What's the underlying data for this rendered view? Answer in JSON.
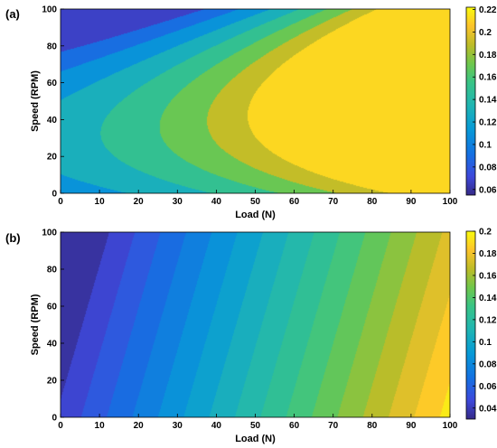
{
  "chart_data": [
    {
      "type": "heatmap",
      "panel_label": "(a)",
      "xlabel": "Load (N)",
      "ylabel": "Speed (RPM)",
      "xlim": [
        0,
        100
      ],
      "ylim": [
        0,
        100
      ],
      "x_ticks": [
        0,
        10,
        20,
        30,
        40,
        50,
        60,
        70,
        80,
        90,
        100
      ],
      "y_ticks": [
        0,
        20,
        40,
        60,
        80,
        100
      ],
      "colorbar": {
        "range": [
          0.055,
          0.222
        ],
        "ticks": [
          0.06,
          0.08,
          0.1,
          0.12,
          0.14,
          0.16,
          0.18,
          0.2,
          0.22
        ],
        "tick_labels": [
          "0.06",
          "0.08",
          "0.1",
          "0.12",
          "0.14",
          "0.16",
          "0.18",
          "0.2",
          "0.22"
        ]
      },
      "contour_levels": [
        0.08,
        0.1,
        0.12,
        0.14,
        0.16,
        0.18,
        0.2
      ],
      "surface": {
        "form": "quadratic_in_speed",
        "a": [
          0.108,
          0.06,
          0.058
        ],
        "b": [
          0.0014,
          0.0013,
          0.0015
        ],
        "c": [
          -2.3e-05,
          -7e-06,
          -8e-06
        ]
      },
      "colormap": "parula",
      "grid": false
    },
    {
      "type": "heatmap",
      "panel_label": "(b)",
      "xlabel": "Load (N)",
      "ylabel": "Speed (RPM)",
      "xlim": [
        0,
        100
      ],
      "ylim": [
        0,
        100
      ],
      "x_ticks": [
        0,
        10,
        20,
        30,
        40,
        50,
        60,
        70,
        80,
        90,
        100
      ],
      "y_ticks": [
        0,
        20,
        40,
        60,
        80,
        100
      ],
      "colorbar": {
        "range": [
          0.03,
          0.2
        ],
        "ticks": [
          0.04,
          0.06,
          0.08,
          0.1,
          0.12,
          0.14,
          0.16,
          0.18,
          0.2
        ],
        "tick_labels": [
          "0.04",
          "0.06",
          "0.08",
          "0.1",
          "0.12",
          "0.14",
          "0.16",
          "0.18",
          "0.2"
        ]
      },
      "contour_levels": [
        0.04,
        0.05,
        0.06,
        0.07,
        0.08,
        0.09,
        0.1,
        0.11,
        0.12,
        0.13,
        0.14,
        0.15,
        0.16,
        0.17,
        0.18,
        0.19
      ],
      "surface": {
        "form": "linear",
        "intercept": 0.042,
        "load_coef": 0.00152,
        "speed_coef": -0.00021
      },
      "colormap": "parula",
      "grid": false
    }
  ]
}
